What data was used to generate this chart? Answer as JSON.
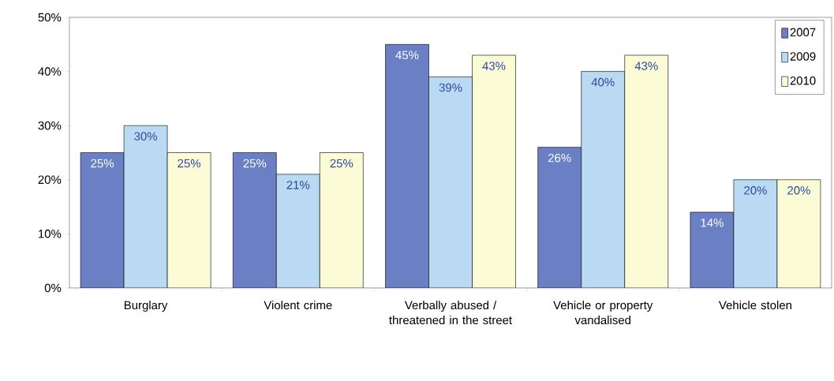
{
  "chart_data": {
    "type": "bar",
    "categories": [
      "Burglary",
      "Violent crime",
      "Verbally abused / threatened in the street",
      "Vehicle or property vandalised",
      "Vehicle stolen"
    ],
    "series": [
      {
        "name": "2007",
        "color": "#6a7fc4",
        "values": [
          25,
          25,
          45,
          26,
          14
        ],
        "value_labels": [
          "25%",
          "25%",
          "45%",
          "26%",
          "14%"
        ]
      },
      {
        "name": "2009",
        "color": "#b9daf2",
        "values": [
          30,
          21,
          39,
          40,
          20
        ],
        "value_labels": [
          "30%",
          "21%",
          "39%",
          "40%",
          "20%"
        ]
      },
      {
        "name": "2010",
        "color": "#fbfbd6",
        "values": [
          25,
          25,
          43,
          43,
          20
        ],
        "value_labels": [
          "25%",
          "25%",
          "43%",
          "43%",
          "20%"
        ]
      }
    ],
    "ylim": [
      0,
      50
    ],
    "yticks": [
      {
        "value": 0,
        "label": "0%"
      },
      {
        "value": 10,
        "label": "10%"
      },
      {
        "value": 20,
        "label": "20%"
      },
      {
        "value": 30,
        "label": "30%"
      },
      {
        "value": 40,
        "label": "40%"
      },
      {
        "value": 50,
        "label": "50%"
      }
    ],
    "legend": "top right",
    "grid": false
  }
}
